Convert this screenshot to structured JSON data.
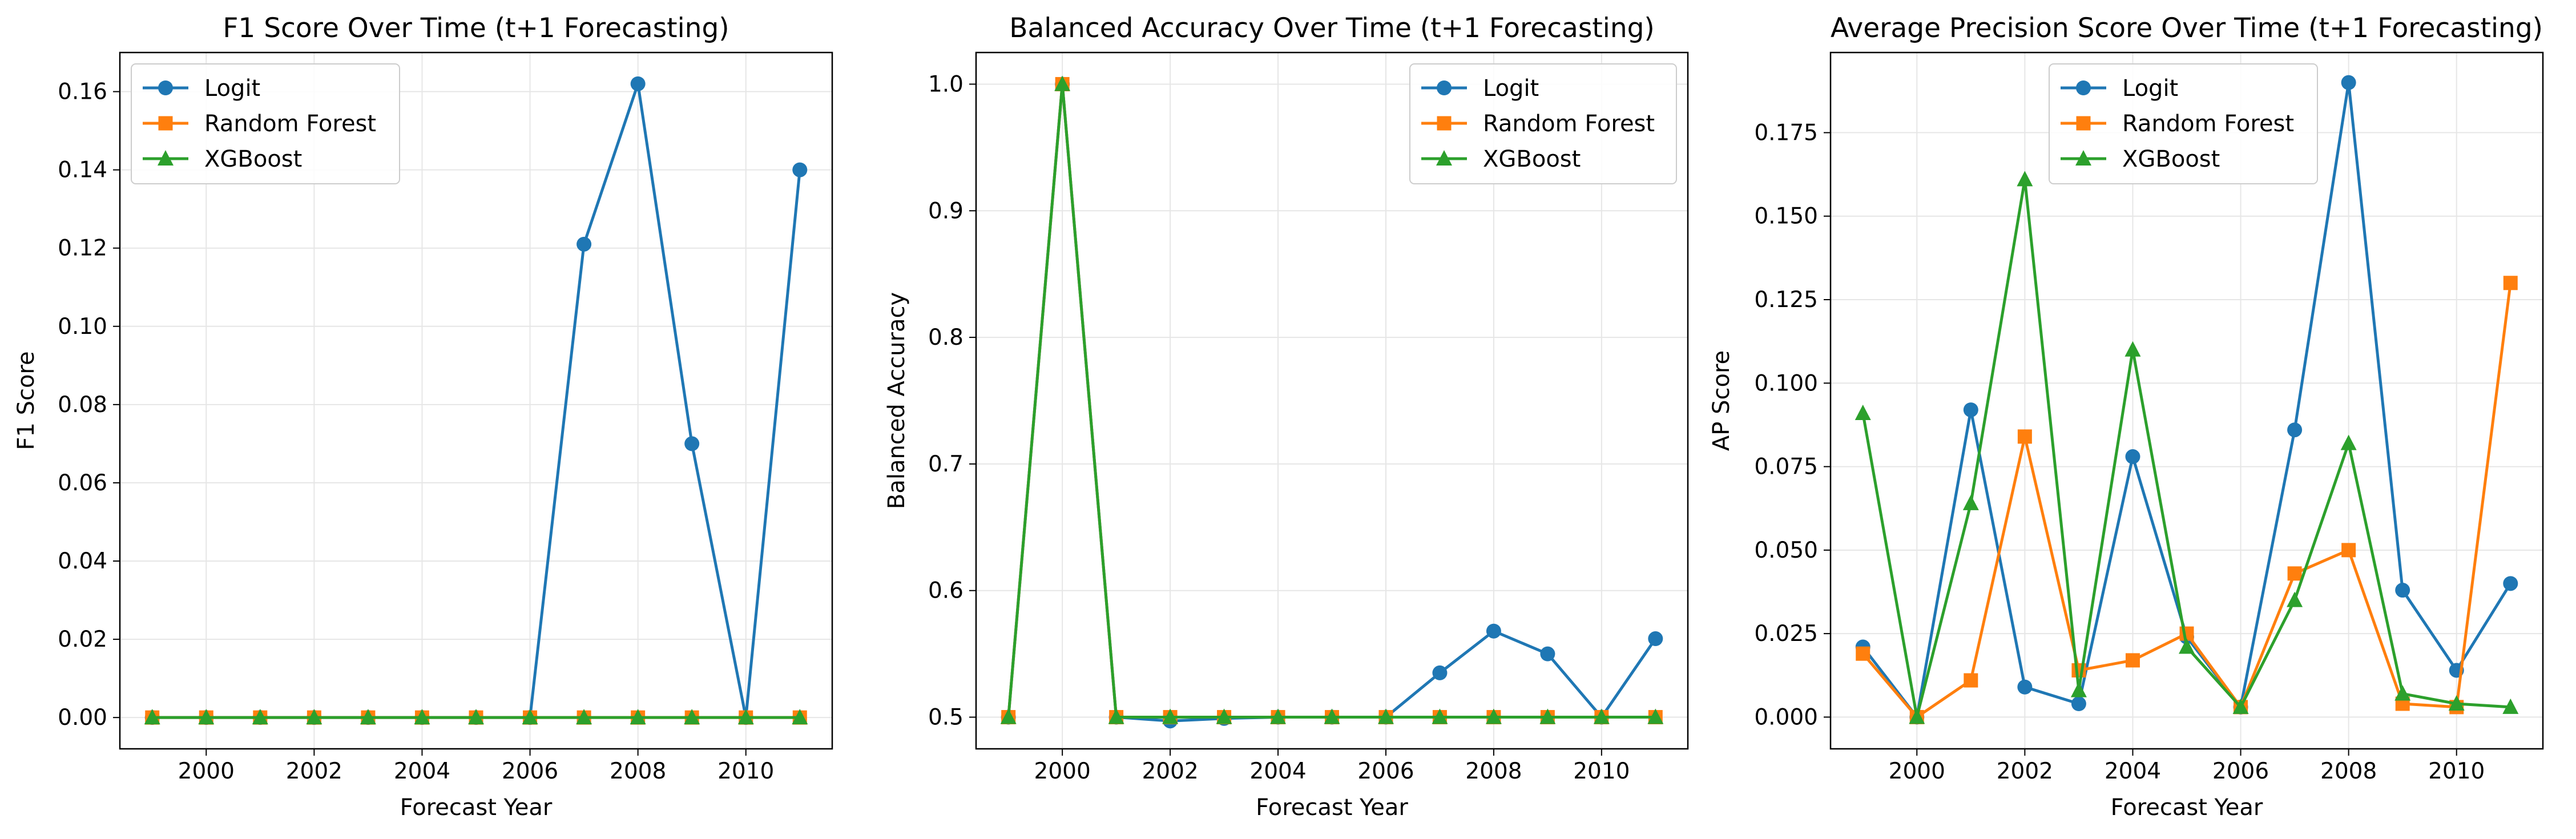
{
  "colors": {
    "logit": "#1f77b4",
    "random_forest": "#ff7f0e",
    "xgboost": "#2ca02c",
    "grid": "#e6e6e6"
  },
  "chart_data": [
    {
      "type": "line",
      "title": "F1 Score Over Time (t+1 Forecasting)",
      "xlabel": "Forecast Year",
      "ylabel": "F1 Score",
      "x": [
        1999,
        2000,
        2001,
        2002,
        2003,
        2004,
        2005,
        2006,
        2007,
        2008,
        2009,
        2010,
        2011
      ],
      "xticks": [
        "2000",
        "2002",
        "2004",
        "2006",
        "2008",
        "2010"
      ],
      "yticks": [
        "0.00",
        "0.02",
        "0.04",
        "0.06",
        "0.08",
        "0.10",
        "0.12",
        "0.14",
        "0.16"
      ],
      "xlim": [
        1998.4,
        2011.6
      ],
      "ylim": [
        -0.008,
        0.17
      ],
      "grid": true,
      "legend": "top-left",
      "series": [
        {
          "name": "Logit",
          "color": "#1f77b4",
          "marker": "circle",
          "values": [
            0,
            0,
            0,
            0,
            0,
            0,
            0,
            0,
            0.121,
            0.162,
            0.07,
            0,
            0.14
          ]
        },
        {
          "name": "Random Forest",
          "color": "#ff7f0e",
          "marker": "square",
          "values": [
            0,
            0,
            0,
            0,
            0,
            0,
            0,
            0,
            0,
            0,
            0,
            0,
            0
          ]
        },
        {
          "name": "XGBoost",
          "color": "#2ca02c",
          "marker": "triangle",
          "values": [
            0,
            0,
            0,
            0,
            0,
            0,
            0,
            0,
            0,
            0,
            0,
            0,
            0
          ]
        }
      ]
    },
    {
      "type": "line",
      "title": "Balanced Accuracy Over Time (t+1 Forecasting)",
      "xlabel": "Forecast Year",
      "ylabel": "Balanced Accuracy",
      "x": [
        1999,
        2000,
        2001,
        2002,
        2003,
        2004,
        2005,
        2006,
        2007,
        2008,
        2009,
        2010,
        2011
      ],
      "xticks": [
        "2000",
        "2002",
        "2004",
        "2006",
        "2008",
        "2010"
      ],
      "yticks": [
        "0.5",
        "0.6",
        "0.7",
        "0.8",
        "0.9",
        "1.0"
      ],
      "xlim": [
        1998.4,
        2011.6
      ],
      "ylim": [
        0.475,
        1.025
      ],
      "grid": true,
      "legend": "top-right",
      "series": [
        {
          "name": "Logit",
          "color": "#1f77b4",
          "marker": "circle",
          "values": [
            0.5,
            1.0,
            0.5,
            0.497,
            0.499,
            0.5,
            0.5,
            0.5,
            0.535,
            0.568,
            0.55,
            0.5,
            0.562
          ]
        },
        {
          "name": "Random Forest",
          "color": "#ff7f0e",
          "marker": "square",
          "values": [
            0.5,
            1.0,
            0.5,
            0.5,
            0.5,
            0.5,
            0.5,
            0.5,
            0.5,
            0.5,
            0.5,
            0.5,
            0.5
          ]
        },
        {
          "name": "XGBoost",
          "color": "#2ca02c",
          "marker": "triangle",
          "values": [
            0.5,
            1.0,
            0.5,
            0.5,
            0.5,
            0.5,
            0.5,
            0.5,
            0.5,
            0.5,
            0.5,
            0.5,
            0.5
          ]
        }
      ]
    },
    {
      "type": "line",
      "title": "Average Precision Score Over Time (t+1 Forecasting)",
      "xlabel": "Forecast Year",
      "ylabel": "AP Score",
      "x": [
        1999,
        2000,
        2001,
        2002,
        2003,
        2004,
        2005,
        2006,
        2007,
        2008,
        2009,
        2010,
        2011
      ],
      "xticks": [
        "2000",
        "2002",
        "2004",
        "2006",
        "2008",
        "2010"
      ],
      "yticks": [
        "0.000",
        "0.025",
        "0.050",
        "0.075",
        "0.100",
        "0.125",
        "0.150",
        "0.175"
      ],
      "xlim": [
        1998.4,
        2011.6
      ],
      "ylim": [
        -0.0095,
        0.199
      ],
      "grid": true,
      "legend": "top-center",
      "series": [
        {
          "name": "Logit",
          "color": "#1f77b4",
          "marker": "circle",
          "values": [
            0.021,
            0.0,
            0.092,
            0.009,
            0.004,
            0.078,
            0.024,
            0.003,
            0.086,
            0.19,
            0.038,
            0.014,
            0.04
          ]
        },
        {
          "name": "Random Forest",
          "color": "#ff7f0e",
          "marker": "square",
          "values": [
            0.019,
            0.0,
            0.011,
            0.084,
            0.014,
            0.017,
            0.025,
            0.003,
            0.043,
            0.05,
            0.004,
            0.003,
            0.13
          ]
        },
        {
          "name": "XGBoost",
          "color": "#2ca02c",
          "marker": "triangle",
          "values": [
            0.091,
            0.0,
            0.064,
            0.161,
            0.008,
            0.11,
            0.021,
            0.003,
            0.035,
            0.082,
            0.007,
            0.004,
            0.003
          ]
        }
      ]
    }
  ]
}
